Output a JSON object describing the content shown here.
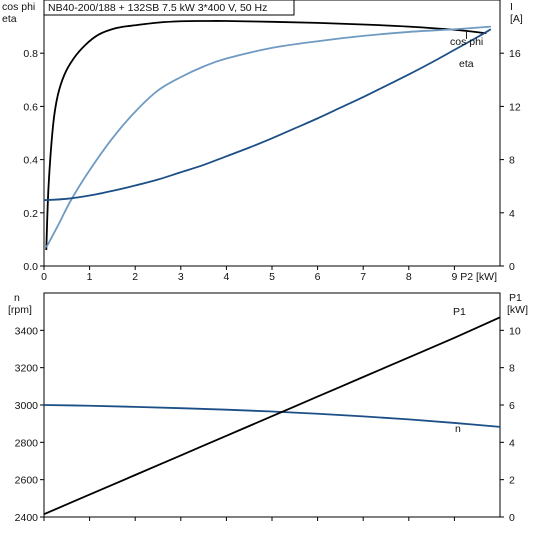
{
  "chart_data": [
    {
      "id": "top",
      "type": "line",
      "title": "NB40-200/188 + 132SB   7.5 kW   3*400 V, 50 Hz",
      "xlabel": "P2 [kW]",
      "ylabel_left": "cos phi\neta",
      "ylabel_right": "I\n[A]",
      "xlim": [
        0,
        10
      ],
      "ylim_left": [
        0.0,
        1.0
      ],
      "ylim_right": [
        0,
        20
      ],
      "x_ticks": [
        "0",
        "1",
        "2",
        "3",
        "4",
        "5",
        "6",
        "7",
        "8",
        "9"
      ],
      "y_left_ticks": [
        "0.0",
        "0.2",
        "0.4",
        "0.6",
        "0.8"
      ],
      "y_right_ticks": [
        "0",
        "4",
        "8",
        "12",
        "16"
      ],
      "grid": false,
      "series": [
        {
          "name": "eta",
          "axis": "left",
          "color": "#000000",
          "x": [
            0.05,
            0.1,
            0.2,
            0.3,
            0.45,
            0.65,
            0.9,
            1.2,
            1.6,
            2.0,
            2.5,
            3.0,
            3.5,
            4.0,
            5.0,
            6.0,
            7.0,
            8.0,
            9.0,
            9.7
          ],
          "y": [
            0.06,
            0.3,
            0.53,
            0.64,
            0.72,
            0.78,
            0.83,
            0.87,
            0.895,
            0.905,
            0.915,
            0.92,
            0.921,
            0.921,
            0.918,
            0.914,
            0.908,
            0.9,
            0.888,
            0.875
          ]
        },
        {
          "name": "cos phi",
          "axis": "left",
          "color": "#6f9ac2",
          "x": [
            0.05,
            0.3,
            0.6,
            1.0,
            1.5,
            2.0,
            2.5,
            3.0,
            3.5,
            4.0,
            5.0,
            6.0,
            7.0,
            8.0,
            9.0,
            9.8
          ],
          "y": [
            0.07,
            0.15,
            0.25,
            0.36,
            0.48,
            0.58,
            0.66,
            0.71,
            0.75,
            0.78,
            0.82,
            0.845,
            0.865,
            0.88,
            0.89,
            0.9
          ]
        },
        {
          "name": "I",
          "axis": "right",
          "color": "#1d4f87",
          "x": [
            0.0,
            0.5,
            1.0,
            1.5,
            2.0,
            2.5,
            3.0,
            3.5,
            4.0,
            4.5,
            5.0,
            5.5,
            6.0,
            6.5,
            7.0,
            7.5,
            8.0,
            8.5,
            9.0,
            9.5,
            9.8
          ],
          "y": [
            4.95,
            5.05,
            5.3,
            5.65,
            6.05,
            6.5,
            7.05,
            7.6,
            8.25,
            8.9,
            9.6,
            10.35,
            11.1,
            11.9,
            12.7,
            13.55,
            14.4,
            15.3,
            16.25,
            17.2,
            17.8
          ]
        }
      ],
      "annotations": [
        "I",
        "cos phi",
        "eta"
      ]
    },
    {
      "id": "bottom",
      "type": "line",
      "title": "",
      "xlabel": "",
      "ylabel_left": "n\n[rpm]",
      "ylabel_right": "P1\n[kW]",
      "xlim": [
        0,
        10
      ],
      "ylim_left": [
        2400,
        3600
      ],
      "ylim_right": [
        0,
        12
      ],
      "x_ticks": [
        "",
        "",
        "",
        "",
        "",
        "",
        "",
        "",
        "",
        ""
      ],
      "y_left_ticks": [
        "2400",
        "2600",
        "2800",
        "3000",
        "3200",
        "3400"
      ],
      "y_right_ticks": [
        "0",
        "2",
        "4",
        "6",
        "8",
        "10"
      ],
      "grid": false,
      "series": [
        {
          "name": "n",
          "axis": "left",
          "color": "#1d4f87",
          "x": [
            0,
            1,
            2,
            3,
            4,
            5,
            6,
            7,
            8,
            9,
            10
          ],
          "y": [
            3000,
            2996,
            2990,
            2983,
            2975,
            2965,
            2953,
            2939,
            2923,
            2904,
            2883
          ]
        },
        {
          "name": "P1",
          "axis": "right",
          "color": "#000000",
          "x": [
            0,
            1,
            2,
            3,
            4,
            5,
            6,
            7,
            8,
            9,
            10
          ],
          "y": [
            0.15,
            1.2,
            2.25,
            3.3,
            4.35,
            5.4,
            6.45,
            7.5,
            8.55,
            9.6,
            10.7
          ]
        }
      ],
      "annotations": [
        "P1",
        "n"
      ]
    }
  ]
}
